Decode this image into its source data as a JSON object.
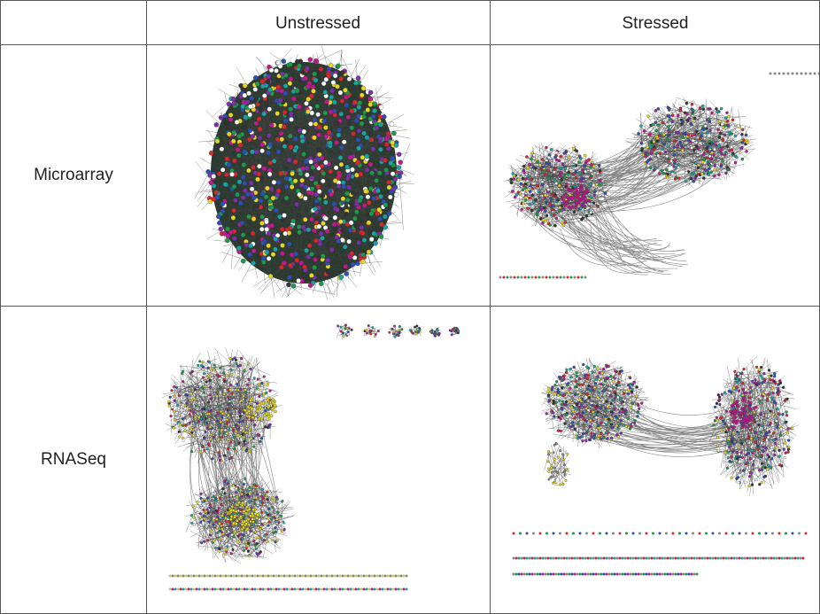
{
  "table": {
    "columns": [
      "Unstressed",
      "Stressed"
    ],
    "rows": [
      "Microarray",
      "RNASeq"
    ]
  }
}
